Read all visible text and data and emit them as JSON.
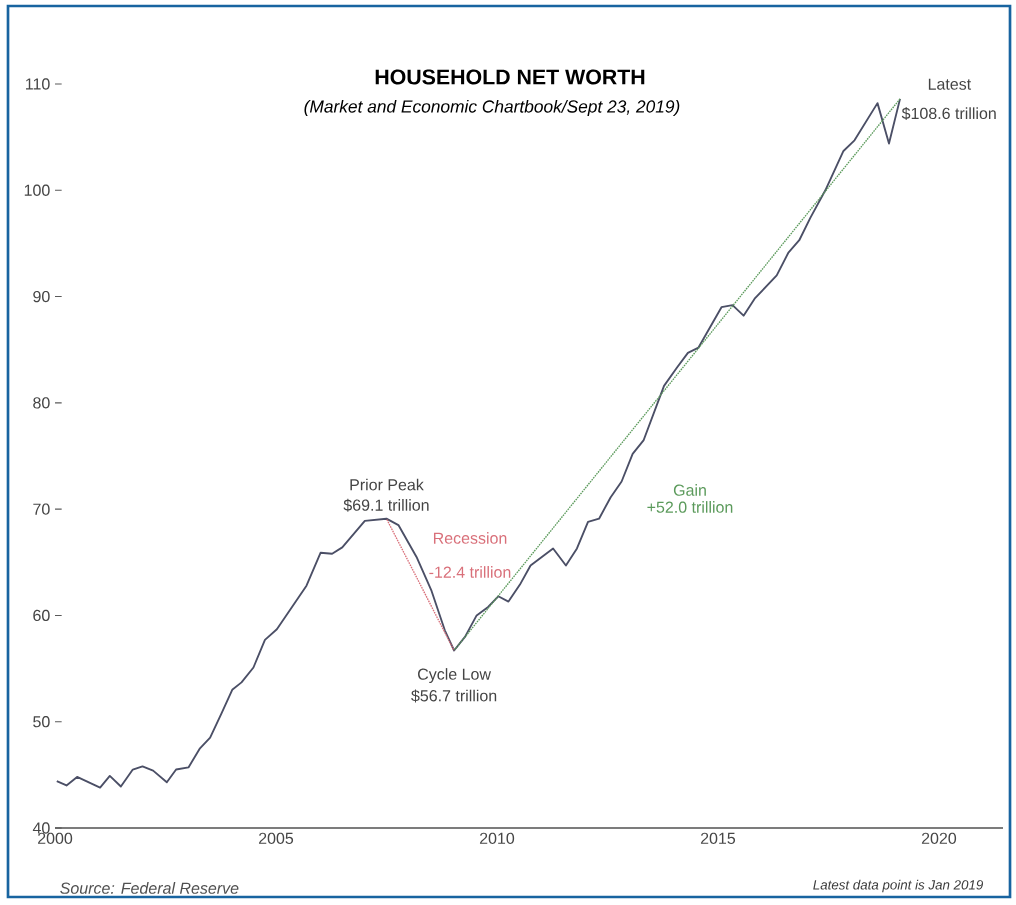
{
  "chart_data": {
    "type": "line",
    "title": "HOUSEHOLD NET WORTH",
    "subtitle": "(Market and Economic Chartbook/Sept 23, 2019)",
    "xlim": [
      2000,
      2021.45
    ],
    "xticks": [
      2000,
      2005,
      2010,
      2015,
      2020
    ],
    "ylim": [
      40,
      110
    ],
    "yticks": [
      40,
      50,
      60,
      70,
      80,
      90,
      100,
      110
    ],
    "line_style": "solid",
    "series": [
      {
        "color": "#4b4f66",
        "x": [
          2000.04,
          2000.26,
          2000.5,
          2001.02,
          2001.24,
          2001.49,
          2001.76,
          2001.98,
          2002.22,
          2002.53,
          2002.74,
          2003.02,
          2003.28,
          2003.51,
          2003.77,
          2004.01,
          2004.22,
          2004.49,
          2004.75,
          2005.02,
          2005.69,
          2006.01,
          2006.27,
          2006.5,
          2007.01,
          2007.5,
          2007.77,
          2008.18,
          2008.52,
          2008.82,
          2009.03,
          2009.28,
          2009.54,
          2009.8,
          2010.03,
          2010.26,
          2010.52,
          2010.76,
          2011.27,
          2011.56,
          2011.81,
          2012.06,
          2012.31,
          2012.57,
          2012.82,
          2013.07,
          2013.32,
          2013.78,
          2014.07,
          2014.32,
          2014.56,
          2015.08,
          2015.33,
          2015.58,
          2015.83,
          2016.33,
          2016.59,
          2016.84,
          2017.09,
          2017.43,
          2017.84,
          2018.09,
          2018.61,
          2018.87,
          2019.12
        ],
        "values": [
          44.4,
          44.0,
          44.8,
          43.8,
          44.9,
          43.9,
          45.5,
          45.8,
          45.4,
          44.3,
          45.5,
          45.7,
          47.5,
          48.5,
          50.8,
          53.0,
          53.7,
          55.1,
          57.7,
          58.7,
          62.8,
          65.9,
          65.8,
          66.4,
          68.9,
          69.1,
          68.5,
          65.5,
          62.3,
          58.6,
          56.7,
          58.0,
          60.0,
          60.8,
          61.8,
          61.3,
          62.9,
          64.7,
          66.3,
          64.7,
          66.3,
          68.8,
          69.1,
          71.1,
          72.6,
          75.2,
          76.5,
          81.6,
          83.3,
          84.7,
          85.2,
          89.0,
          89.2,
          88.2,
          89.8,
          92.0,
          94.1,
          95.3,
          97.4,
          100.0,
          103.7,
          104.7,
          108.2,
          104.4,
          108.6
        ]
      },
      {
        "color": "#d9707a",
        "line_style": "dotted",
        "x": [
          2007.5,
          2009.03
        ],
        "values": [
          69.1,
          56.7
        ]
      },
      {
        "color": "#5b9a5b",
        "line_style": "dotted",
        "x": [
          2009.03,
          2019.12
        ],
        "values": [
          56.7,
          108.6
        ]
      }
    ],
    "annotations": [
      {
        "text": "Prior Peak",
        "x": 2007.5,
        "y": 69.1
      },
      {
        "text": "$69.1 trillion",
        "x": 2007.5,
        "y": 69.1
      },
      {
        "text": "Cycle Low",
        "x": 2009.03,
        "y": 56.7
      },
      {
        "text": "$56.7 trillion",
        "x": 2009.03,
        "y": 56.7
      },
      "Recession",
      "-12.4 trillion",
      "Gain",
      "+52.0 trillion",
      {
        "text": "Latest",
        "x": 2019.12,
        "y": 108.6
      },
      {
        "text": "$108.6 trillion",
        "x": 2019.12,
        "y": 108.6
      },
      "Source: Federal Reserve",
      "Latest data point is Jan 2019"
    ]
  }
}
